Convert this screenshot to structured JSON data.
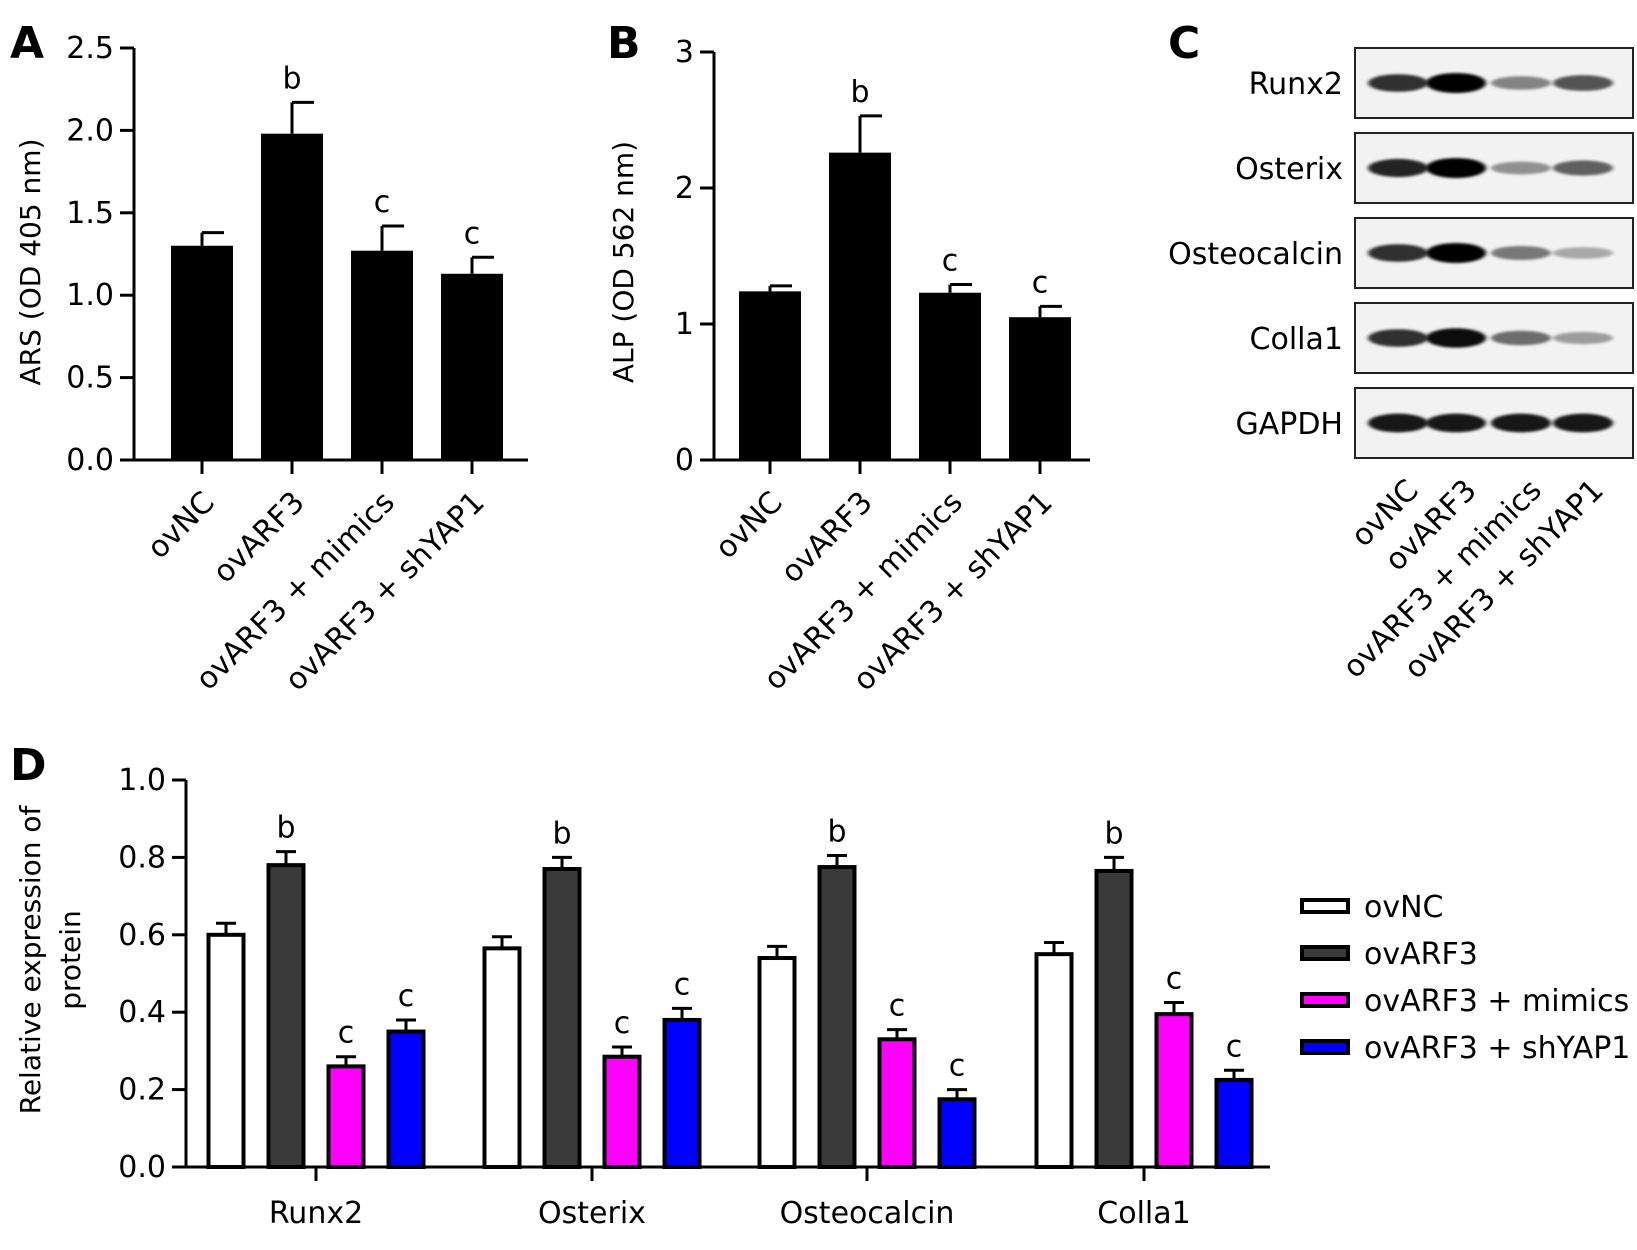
{
  "panels": {
    "A": {
      "letter": "A",
      "chart_data": {
        "type": "bar",
        "categories": [
          "ovNC",
          "ovARF3",
          "ovARF3 + mimics",
          "ovARF3 + shYAP1"
        ],
        "values": [
          1.3,
          1.98,
          1.27,
          1.13
        ],
        "errors": [
          0.08,
          0.19,
          0.15,
          0.1
        ],
        "annotations": [
          "",
          "b",
          "c",
          "c"
        ],
        "ylabel": "ARS (OD 405 nm)",
        "xlabel": "",
        "ylim": [
          0,
          2.5
        ],
        "yticks": [
          "0.0",
          "0.5",
          "1.0",
          "1.5",
          "2.0",
          "2.5"
        ],
        "bar_color": "#000000"
      }
    },
    "B": {
      "letter": "B",
      "chart_data": {
        "type": "bar",
        "categories": [
          "ovNC",
          "ovARF3",
          "ovARF3 + mimics",
          "ovARF3 + shYAP1"
        ],
        "values": [
          1.24,
          2.26,
          1.23,
          1.05
        ],
        "errors": [
          0.04,
          0.27,
          0.06,
          0.08
        ],
        "annotations": [
          "",
          "b",
          "c",
          "c"
        ],
        "ylabel": "ALP (OD 562 nm)",
        "xlabel": "",
        "ylim": [
          0,
          3
        ],
        "yticks": [
          "0",
          "1",
          "2",
          "3"
        ],
        "bar_color": "#000000"
      }
    },
    "C": {
      "letter": "C",
      "blot_rows": [
        "Runx2",
        "Osterix",
        "Osteocalcin",
        "Colla1",
        "GAPDH"
      ],
      "lanes": [
        "ovNC",
        "ovARF3",
        "ovARF3 + mimics",
        "ovARF3 + shYAP1"
      ],
      "band_intensity": [
        [
          0.8,
          1.0,
          0.45,
          0.65
        ],
        [
          0.85,
          1.0,
          0.4,
          0.6
        ],
        [
          0.8,
          1.0,
          0.5,
          0.3
        ],
        [
          0.8,
          0.95,
          0.55,
          0.35
        ],
        [
          0.9,
          0.9,
          0.9,
          0.9
        ]
      ]
    },
    "D": {
      "letter": "D",
      "chart_data": {
        "type": "bar",
        "categories": [
          "Runx2",
          "Osterix",
          "Osteocalcin",
          "Colla1"
        ],
        "series": [
          {
            "name": "ovNC",
            "color": "#ffffff",
            "values": [
              0.6,
              0.565,
              0.54,
              0.55
            ],
            "errors": [
              0.03,
              0.03,
              0.03,
              0.03
            ],
            "annotations": [
              "",
              "",
              "",
              ""
            ]
          },
          {
            "name": "ovARF3",
            "color": "#3a3a3a",
            "values": [
              0.78,
              0.77,
              0.775,
              0.765
            ],
            "errors": [
              0.035,
              0.03,
              0.03,
              0.035
            ],
            "annotations": [
              "b",
              "b",
              "b",
              "b"
            ]
          },
          {
            "name": "ovARF3 + mimics",
            "color": "#ff00ff",
            "values": [
              0.26,
              0.285,
              0.33,
              0.395
            ],
            "errors": [
              0.025,
              0.025,
              0.025,
              0.03
            ],
            "annotations": [
              "c",
              "c",
              "c",
              "c"
            ]
          },
          {
            "name": "ovARF3 + shYAP1",
            "color": "#0000ff",
            "values": [
              0.35,
              0.38,
              0.175,
              0.225
            ],
            "errors": [
              0.03,
              0.03,
              0.025,
              0.025
            ],
            "annotations": [
              "c",
              "c",
              "c",
              "c"
            ]
          }
        ],
        "ylabel_line1": "Relative expression of",
        "ylabel_line2": "protein",
        "xlabel": "",
        "ylim": [
          0,
          1.0
        ],
        "yticks": [
          "0.0",
          "0.2",
          "0.4",
          "0.6",
          "0.8",
          "1.0"
        ],
        "legend_placement": "right"
      }
    }
  }
}
